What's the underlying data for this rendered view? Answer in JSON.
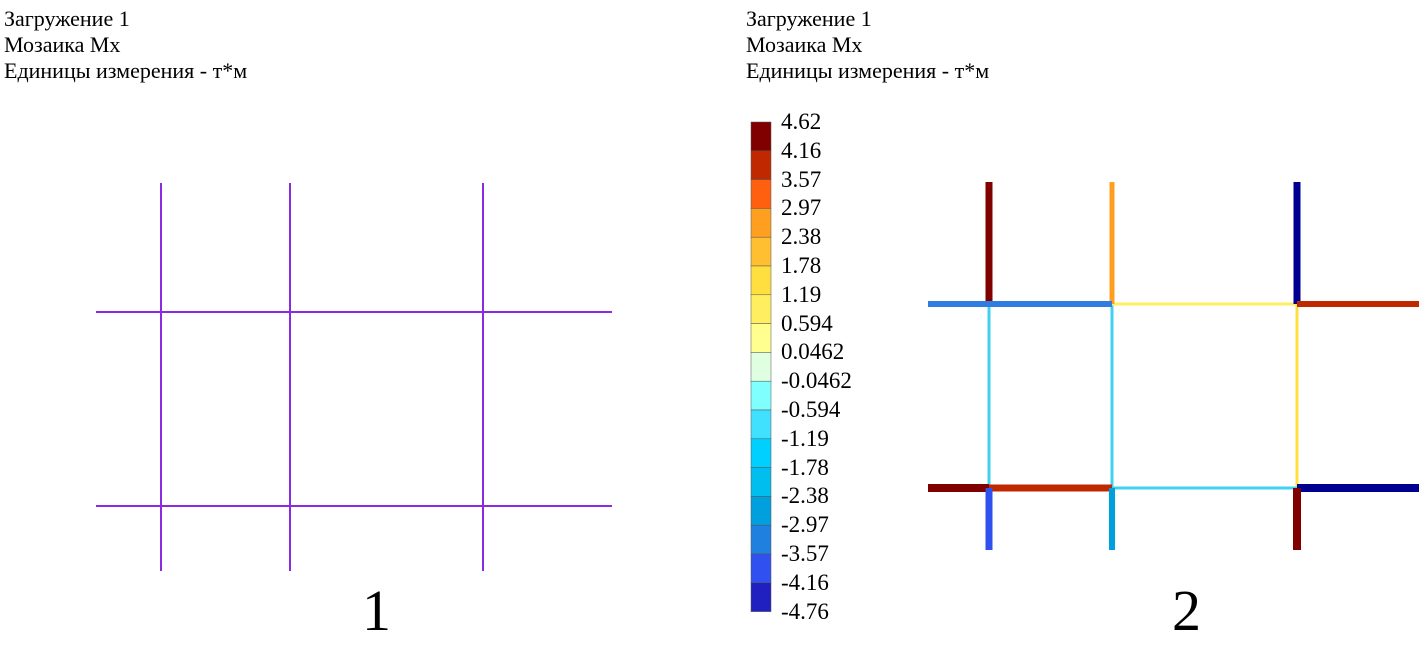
{
  "panels": [
    {
      "header": {
        "load_case": "Загружение 1",
        "mosaic": "Мозаика Mx",
        "units": "Единицы измерения - т*м"
      },
      "number": "1",
      "frame_color": "#8a2be2"
    },
    {
      "header": {
        "load_case": "Загружение 1",
        "mosaic": "Мозаика Mx",
        "units": "Единицы измерения - т*м"
      },
      "number": "2"
    }
  ],
  "legend": {
    "labels": [
      "4.62",
      "4.16",
      "3.57",
      "2.97",
      "2.38",
      "1.78",
      "1.19",
      "0.594",
      "0.0462",
      "-0.0462",
      "-0.594",
      "-1.19",
      "-1.78",
      "-2.38",
      "-2.97",
      "-3.57",
      "-4.16",
      "-4.76"
    ],
    "colors": [
      "#800000",
      "#c02800",
      "#ff6010",
      "#ff9f20",
      "#ffbf30",
      "#ffdf40",
      "#ffef60",
      "#ffff90",
      "#e0ffe0",
      "#80ffff",
      "#40e0ff",
      "#00d0ff",
      "#00bfef",
      "#00a0df",
      "#2080e0",
      "#3050f0",
      "#2020c0"
    ]
  }
}
